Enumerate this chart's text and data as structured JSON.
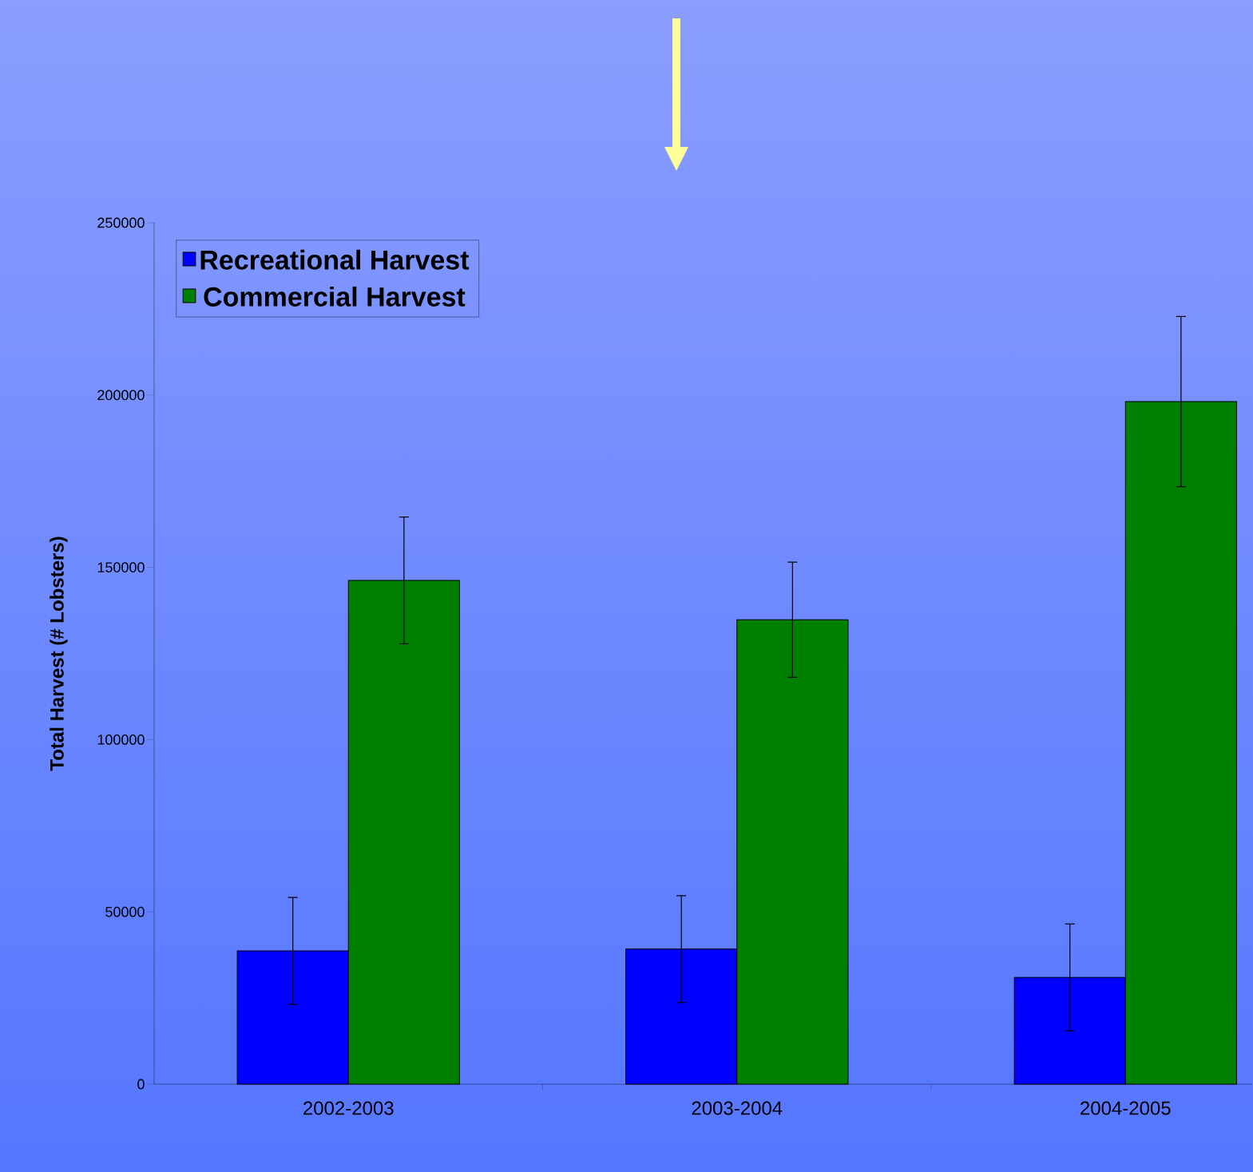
{
  "chart_data": {
    "type": "bar",
    "ylabel": "Total Harvest (# Lobsters)",
    "categories": [
      "2002-2003",
      "2003-2004",
      "2004-2005"
    ],
    "series": [
      {
        "name": "Recreational Harvest",
        "color": "#0000ff",
        "values": [
          38700,
          39200,
          31000
        ],
        "errors": [
          15500,
          15500,
          15500
        ]
      },
      {
        "name": "Commercial Harvest",
        "color": "#008000",
        "values": [
          146200,
          134800,
          198100
        ],
        "errors": [
          18400,
          16700,
          24700
        ]
      }
    ],
    "ylim": [
      0,
      250000
    ],
    "yticks": [
      0,
      50000,
      100000,
      150000,
      200000,
      250000
    ],
    "legend": "top left"
  }
}
